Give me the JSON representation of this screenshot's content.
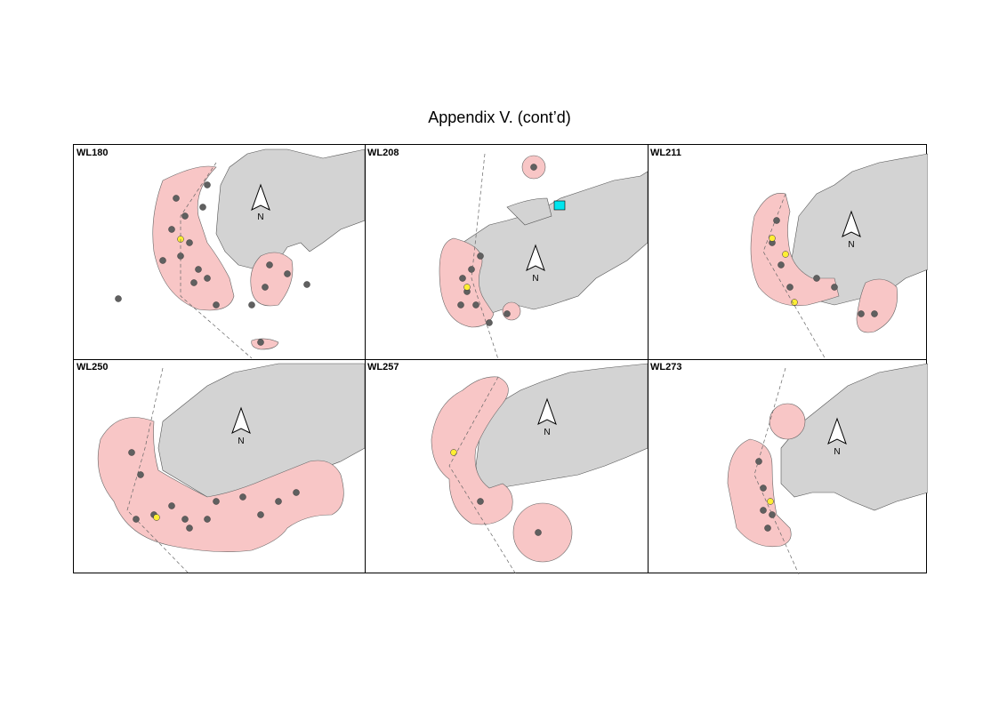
{
  "page": {
    "title": "Appendix V.  (cont’d)"
  },
  "colors": {
    "land": "#d3d3d3",
    "home_range": "#f8c6c6",
    "point": "#606060",
    "highlight_point": "#ffee33",
    "river": "#1a8f8a",
    "reservoir": "#00e5ee"
  },
  "north_arrow": {
    "label": "N"
  },
  "panels": [
    {
      "label": "WL180"
    },
    {
      "label": "WL208"
    },
    {
      "label": "WL211"
    },
    {
      "label": "WL250"
    },
    {
      "label": "WL257"
    },
    {
      "label": "WL273"
    }
  ]
}
